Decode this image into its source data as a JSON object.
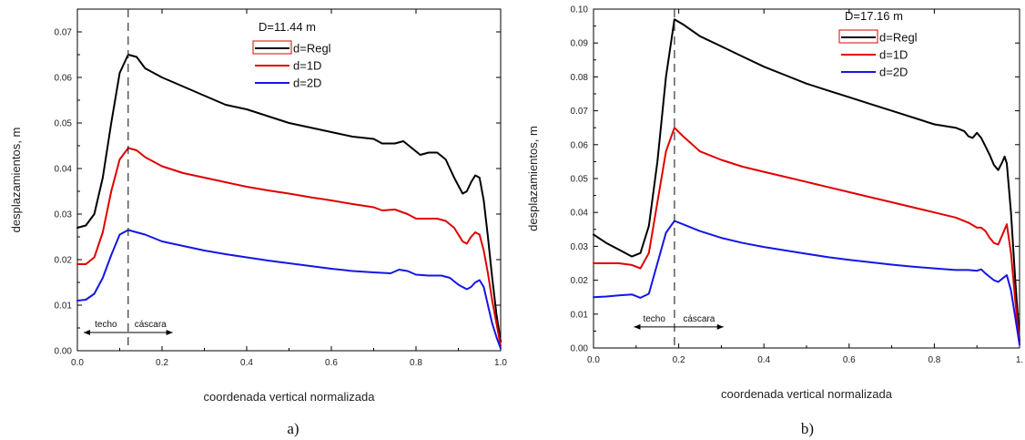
{
  "chart_data": [
    {
      "id": "a",
      "type": "line",
      "caption": "a)",
      "xlabel": "coordenada vertical normalizada",
      "ylabel": "desplazamientos, m",
      "xlim": [
        0,
        1
      ],
      "ylim": [
        0,
        0.075
      ],
      "xticks": [
        0.0,
        0.2,
        0.4,
        0.6,
        0.8,
        1.0
      ],
      "xtick_labels": [
        "0.0",
        "0.2",
        "0.4",
        "0.6",
        "0.8",
        "1.0"
      ],
      "yticks": [
        0.0,
        0.01,
        0.02,
        0.03,
        0.04,
        0.05,
        0.06,
        0.07
      ],
      "ytick_labels": [
        "0.00",
        "0.01",
        "0.02",
        "0.03",
        "0.04",
        "0.05",
        "0.06",
        "0.07"
      ],
      "legend_title": "D=11.44 m",
      "marker_x": 0.12,
      "regions": {
        "left": "techo",
        "right": "cáscara",
        "y": 0.004,
        "x_start": 0.015,
        "x_end": 0.225
      },
      "series": [
        {
          "name": "d=Regl",
          "color": "#000000",
          "x": [
            0,
            0.02,
            0.04,
            0.06,
            0.08,
            0.1,
            0.12,
            0.14,
            0.16,
            0.2,
            0.25,
            0.3,
            0.35,
            0.4,
            0.45,
            0.5,
            0.55,
            0.6,
            0.65,
            0.7,
            0.72,
            0.75,
            0.77,
            0.79,
            0.81,
            0.83,
            0.85,
            0.87,
            0.89,
            0.91,
            0.92,
            0.93,
            0.94,
            0.95,
            0.96,
            0.97,
            0.98,
            0.99,
            1.0
          ],
          "y": [
            0.027,
            0.0275,
            0.03,
            0.038,
            0.05,
            0.061,
            0.065,
            0.0645,
            0.062,
            0.06,
            0.058,
            0.056,
            0.054,
            0.053,
            0.0515,
            0.05,
            0.049,
            0.048,
            0.047,
            0.0465,
            0.0455,
            0.0455,
            0.046,
            0.0445,
            0.043,
            0.0435,
            0.0435,
            0.042,
            0.038,
            0.0345,
            0.035,
            0.037,
            0.0385,
            0.038,
            0.033,
            0.025,
            0.016,
            0.008,
            0.002
          ]
        },
        {
          "name": "d=1D",
          "color": "#e00000",
          "x": [
            0,
            0.02,
            0.04,
            0.06,
            0.08,
            0.1,
            0.12,
            0.14,
            0.16,
            0.2,
            0.25,
            0.3,
            0.35,
            0.4,
            0.45,
            0.5,
            0.55,
            0.6,
            0.65,
            0.7,
            0.72,
            0.75,
            0.78,
            0.8,
            0.83,
            0.85,
            0.87,
            0.89,
            0.91,
            0.92,
            0.93,
            0.94,
            0.95,
            0.96,
            0.97,
            0.98,
            0.99,
            1.0
          ],
          "y": [
            0.019,
            0.019,
            0.0205,
            0.026,
            0.035,
            0.042,
            0.0445,
            0.044,
            0.0425,
            0.0405,
            0.039,
            0.038,
            0.037,
            0.036,
            0.0352,
            0.0345,
            0.0337,
            0.033,
            0.0322,
            0.0315,
            0.0308,
            0.031,
            0.03,
            0.029,
            0.029,
            0.029,
            0.0285,
            0.027,
            0.024,
            0.0235,
            0.025,
            0.026,
            0.0255,
            0.022,
            0.017,
            0.011,
            0.006,
            0.001
          ]
        },
        {
          "name": "d=2D",
          "color": "#1515e6",
          "x": [
            0,
            0.02,
            0.04,
            0.06,
            0.08,
            0.1,
            0.12,
            0.14,
            0.16,
            0.2,
            0.25,
            0.3,
            0.35,
            0.4,
            0.45,
            0.5,
            0.55,
            0.6,
            0.65,
            0.7,
            0.74,
            0.76,
            0.78,
            0.8,
            0.83,
            0.86,
            0.88,
            0.9,
            0.92,
            0.93,
            0.94,
            0.95,
            0.96,
            0.97,
            0.98,
            0.99,
            1.0
          ],
          "y": [
            0.011,
            0.0112,
            0.0125,
            0.016,
            0.021,
            0.0255,
            0.0265,
            0.026,
            0.0255,
            0.024,
            0.023,
            0.022,
            0.0212,
            0.0205,
            0.0198,
            0.0192,
            0.0186,
            0.018,
            0.0175,
            0.0172,
            0.017,
            0.0178,
            0.0175,
            0.0167,
            0.0165,
            0.0165,
            0.016,
            0.0145,
            0.0135,
            0.014,
            0.015,
            0.0155,
            0.014,
            0.01,
            0.006,
            0.003,
            0.0005
          ]
        }
      ]
    },
    {
      "id": "b",
      "type": "line",
      "caption": "b)",
      "xlabel": "coordenada vertical normalizada",
      "ylabel": "desplazamientos, m",
      "xlim": [
        0,
        1
      ],
      "ylim": [
        0,
        0.1
      ],
      "xticks": [
        0.0,
        0.2,
        0.4,
        0.6,
        0.8,
        1.0
      ],
      "xtick_labels": [
        "0.0",
        "0.2",
        "0.4",
        "0.6",
        "0.8",
        "1."
      ],
      "yticks": [
        0.0,
        0.01,
        0.02,
        0.03,
        0.04,
        0.05,
        0.06,
        0.07,
        0.08,
        0.09,
        0.1
      ],
      "ytick_labels": [
        "0.00",
        "0.01",
        "0.02",
        "0.03",
        "0.04",
        "0.05",
        "0.06",
        "0.07",
        "0.08",
        "0.09",
        "0.10"
      ],
      "legend_title": "D=17.16 m",
      "marker_x": 0.19,
      "regions": {
        "left": "techo",
        "right": "cáscara",
        "y": 0.0062,
        "x_start": 0.095,
        "x_end": 0.305
      },
      "series": [
        {
          "name": "d=Regl",
          "color": "#000000",
          "x": [
            0,
            0.03,
            0.06,
            0.09,
            0.11,
            0.13,
            0.15,
            0.17,
            0.19,
            0.21,
            0.25,
            0.3,
            0.35,
            0.4,
            0.45,
            0.5,
            0.55,
            0.6,
            0.65,
            0.7,
            0.75,
            0.8,
            0.85,
            0.87,
            0.88,
            0.89,
            0.9,
            0.91,
            0.92,
            0.93,
            0.94,
            0.95,
            0.96,
            0.965,
            0.97,
            0.98,
            0.99,
            1.0
          ],
          "y": [
            0.0335,
            0.031,
            0.029,
            0.027,
            0.028,
            0.036,
            0.055,
            0.08,
            0.097,
            0.0955,
            0.092,
            0.089,
            0.086,
            0.083,
            0.0805,
            0.078,
            0.076,
            0.074,
            0.072,
            0.07,
            0.068,
            0.066,
            0.065,
            0.064,
            0.0625,
            0.062,
            0.0635,
            0.062,
            0.0595,
            0.057,
            0.054,
            0.0525,
            0.055,
            0.0565,
            0.0545,
            0.04,
            0.02,
            0.002
          ]
        },
        {
          "name": "d=1D",
          "color": "#e00000",
          "x": [
            0,
            0.03,
            0.06,
            0.09,
            0.11,
            0.13,
            0.15,
            0.17,
            0.19,
            0.21,
            0.25,
            0.3,
            0.35,
            0.4,
            0.45,
            0.5,
            0.55,
            0.6,
            0.65,
            0.7,
            0.75,
            0.8,
            0.85,
            0.88,
            0.9,
            0.91,
            0.92,
            0.93,
            0.94,
            0.95,
            0.96,
            0.97,
            0.98,
            0.99,
            1.0
          ],
          "y": [
            0.025,
            0.025,
            0.025,
            0.0245,
            0.0235,
            0.028,
            0.043,
            0.058,
            0.065,
            0.0625,
            0.058,
            0.0555,
            0.0535,
            0.052,
            0.0505,
            0.049,
            0.0475,
            0.046,
            0.0445,
            0.043,
            0.0415,
            0.04,
            0.0385,
            0.037,
            0.0355,
            0.0355,
            0.0345,
            0.0325,
            0.031,
            0.0305,
            0.0335,
            0.0365,
            0.028,
            0.014,
            0.001
          ]
        },
        {
          "name": "d=2D",
          "color": "#1515e6",
          "x": [
            0,
            0.03,
            0.06,
            0.09,
            0.11,
            0.13,
            0.15,
            0.17,
            0.19,
            0.21,
            0.25,
            0.3,
            0.35,
            0.4,
            0.45,
            0.5,
            0.55,
            0.6,
            0.65,
            0.7,
            0.75,
            0.8,
            0.85,
            0.88,
            0.9,
            0.91,
            0.92,
            0.93,
            0.94,
            0.95,
            0.96,
            0.97,
            0.98,
            0.99,
            1.0
          ],
          "y": [
            0.015,
            0.0152,
            0.0155,
            0.0158,
            0.0148,
            0.016,
            0.025,
            0.034,
            0.0375,
            0.0365,
            0.0345,
            0.0325,
            0.031,
            0.0298,
            0.0288,
            0.0278,
            0.0268,
            0.026,
            0.0253,
            0.0246,
            0.024,
            0.0235,
            0.023,
            0.023,
            0.0228,
            0.0232,
            0.022,
            0.021,
            0.02,
            0.0195,
            0.0205,
            0.0215,
            0.017,
            0.009,
            0.001
          ]
        }
      ]
    }
  ]
}
